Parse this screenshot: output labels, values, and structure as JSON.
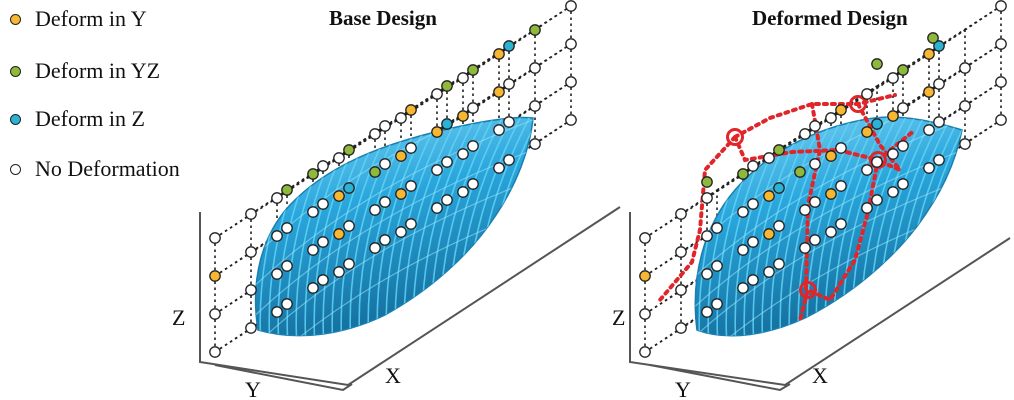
{
  "legend": {
    "items": [
      {
        "label": "Deform in Y",
        "color": "#f7b731"
      },
      {
        "label": "Deform in YZ",
        "color": "#8fb93a"
      },
      {
        "label": "Deform in Z",
        "color": "#2bb3d6"
      },
      {
        "label": "No Deformation",
        "color": "#ffffff"
      }
    ]
  },
  "panels": {
    "base": {
      "title": "Base Design"
    },
    "deformed": {
      "title": "Deformed Design"
    }
  },
  "axes": {
    "x": "X",
    "y": "Y",
    "z": "Z"
  },
  "colors": {
    "body": "#2aa6dc",
    "contour": "#5fd3f5",
    "deform_path": "#e0262a"
  }
}
